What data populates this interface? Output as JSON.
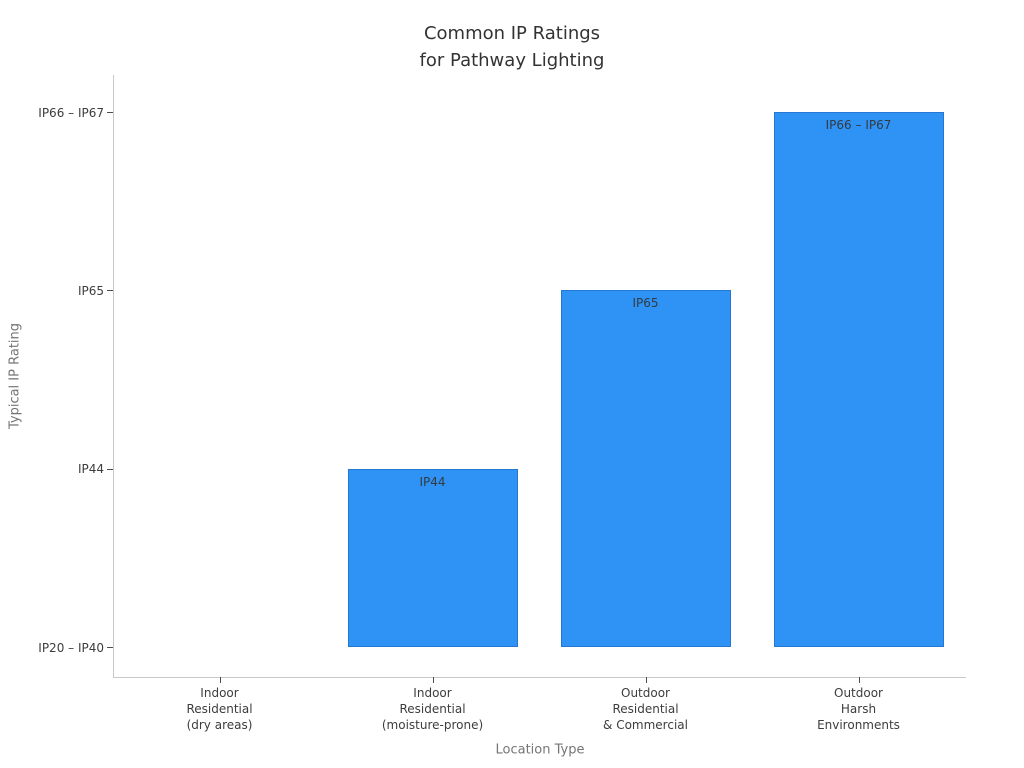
{
  "figure": {
    "title_lines": [
      "Common IP Ratings",
      "for Pathway Lighting"
    ],
    "background": "#ffffff"
  },
  "chart_data": {
    "type": "bar",
    "title": "Common IP Ratings for Pathway Lighting",
    "xlabel": "Location Type",
    "ylabel": "Typical IP Rating",
    "categories": [
      "Indoor\nResidential\n(dry areas)",
      "Indoor\nResidential\n(moisture-prone)",
      "Outdoor\nResidential\n& Commercial",
      "Outdoor\nHarsh\nEnvironments"
    ],
    "values": [
      0,
      1,
      2,
      3
    ],
    "ytick_values": [
      0,
      1,
      2,
      3
    ],
    "ytick_labels": [
      "IP20 – IP40",
      "IP44",
      "IP65",
      "IP66 – IP67"
    ],
    "bar_labels": [
      "",
      "IP44",
      "IP65",
      "IP66 – IP67"
    ],
    "bar_color": "#2f93f5",
    "bar_edge_color": "#2478d2",
    "grid": false,
    "legend": false,
    "ylim": [
      -0.17,
      3.21
    ]
  }
}
